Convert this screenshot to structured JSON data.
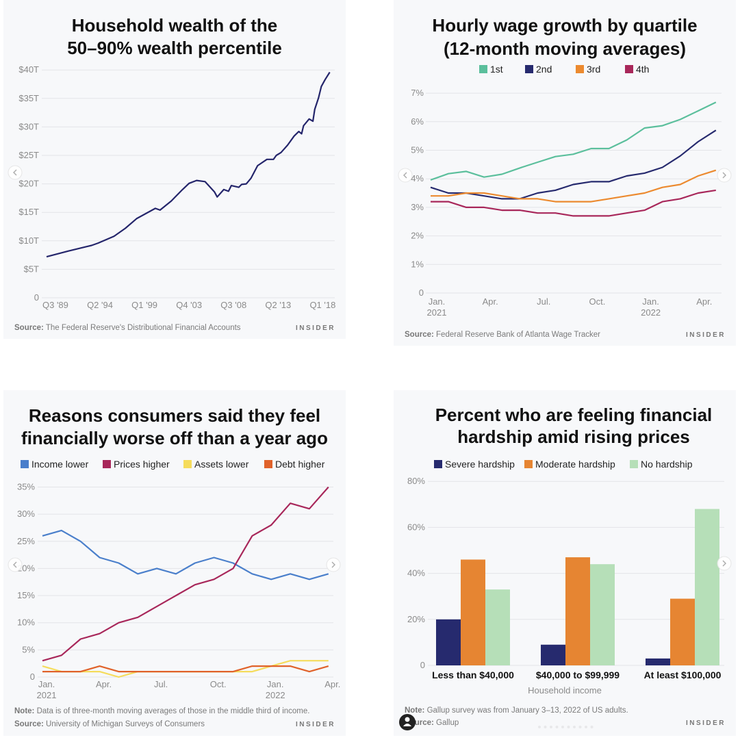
{
  "brand": "INSIDER",
  "chart_data": [
    {
      "type": "line",
      "title_lines": [
        "Household wealth of the",
        "50–90% wealth percentile"
      ],
      "ylim": [
        0,
        40
      ],
      "y_ticks": [
        {
          "v": 0,
          "label": "0"
        },
        {
          "v": 5,
          "label": "$5T"
        },
        {
          "v": 10,
          "label": "$10T"
        },
        {
          "v": 15,
          "label": "$15T"
        },
        {
          "v": 20,
          "label": "$20T"
        },
        {
          "v": 25,
          "label": "$25T"
        },
        {
          "v": 30,
          "label": "$30T"
        },
        {
          "v": 35,
          "label": "$35T"
        },
        {
          "v": 40,
          "label": "$40T"
        }
      ],
      "x_ticks": [
        {
          "v": 1989.5,
          "label": "Q3 '89"
        },
        {
          "v": 1994.25,
          "label": "Q2 '94"
        },
        {
          "v": 1999.0,
          "label": "Q1 '99"
        },
        {
          "v": 2003.75,
          "label": "Q4 '03"
        },
        {
          "v": 2008.5,
          "label": "Q3 '08"
        },
        {
          "v": 2013.25,
          "label": "Q2 '13"
        },
        {
          "v": 2018.0,
          "label": "Q1 '18"
        }
      ],
      "grid": true,
      "series": [
        {
          "color": "#24256b",
          "points": [
            [
              1989.5,
              7.2
            ],
            [
              1991.8,
              8.2
            ],
            [
              1994.3,
              9.2
            ],
            [
              1995.0,
              9.6
            ],
            [
              1996.7,
              10.8
            ],
            [
              1997.9,
              12.2
            ],
            [
              1999.1,
              13.9
            ],
            [
              2001.1,
              15.7
            ],
            [
              2001.6,
              15.4
            ],
            [
              2002.8,
              17.0
            ],
            [
              2004.0,
              19.0
            ],
            [
              2004.7,
              20.1
            ],
            [
              2005.5,
              20.6
            ],
            [
              2006.4,
              20.4
            ],
            [
              2007.4,
              18.6
            ],
            [
              2007.7,
              17.7
            ],
            [
              2008.4,
              19.0
            ],
            [
              2008.9,
              18.7
            ],
            [
              2009.2,
              19.7
            ],
            [
              2010.0,
              19.4
            ],
            [
              2010.3,
              19.9
            ],
            [
              2010.8,
              20.0
            ],
            [
              2011.3,
              21.0
            ],
            [
              2012.0,
              23.2
            ],
            [
              2013.0,
              24.3
            ],
            [
              2013.7,
              24.3
            ],
            [
              2014.0,
              25.0
            ],
            [
              2014.5,
              25.5
            ],
            [
              2015.2,
              26.8
            ],
            [
              2015.9,
              28.4
            ],
            [
              2016.4,
              29.2
            ],
            [
              2016.7,
              28.8
            ],
            [
              2016.9,
              30.2
            ],
            [
              2017.5,
              31.4
            ],
            [
              2017.9,
              31.0
            ],
            [
              2018.1,
              33.1
            ],
            [
              2018.5,
              35.1
            ],
            [
              2018.8,
              37.1
            ],
            [
              2019.2,
              38.3
            ],
            [
              2019.7,
              39.6
            ]
          ]
        }
      ],
      "source_label": "Source:",
      "source": "The Federal Reserve's Distributional Financial Accounts"
    },
    {
      "type": "line",
      "title_lines": [
        "Hourly wage growth by quartile",
        "(12-month moving averages)"
      ],
      "ylim": [
        0,
        7
      ],
      "y_ticks": [
        {
          "v": 0,
          "label": "0"
        },
        {
          "v": 1,
          "label": "1%"
        },
        {
          "v": 2,
          "label": "2%"
        },
        {
          "v": 3,
          "label": "3%"
        },
        {
          "v": 4,
          "label": "4%"
        },
        {
          "v": 5,
          "label": "5%"
        },
        {
          "v": 6,
          "label": "6%"
        },
        {
          "v": 7,
          "label": "7%"
        }
      ],
      "x_ticks": [
        {
          "v": 0,
          "label": "Jan.",
          "sub": "2021"
        },
        {
          "v": 3,
          "label": "Apr."
        },
        {
          "v": 6,
          "label": "Jul."
        },
        {
          "v": 9,
          "label": "Oct."
        },
        {
          "v": 12,
          "label": "Jan.",
          "sub": "2022"
        },
        {
          "v": 15,
          "label": "Apr."
        }
      ],
      "grid": true,
      "legend": "top",
      "series": [
        {
          "name": "1st",
          "color": "#5bbf9c",
          "values": [
            3.96,
            4.18,
            4.26,
            4.06,
            4.16,
            4.38,
            4.58,
            4.78,
            4.86,
            5.06,
            5.06,
            5.36,
            5.78,
            5.86,
            6.08,
            6.38,
            6.68
          ]
        },
        {
          "name": "2nd",
          "color": "#262a6e",
          "values": [
            3.7,
            3.5,
            3.5,
            3.4,
            3.3,
            3.3,
            3.5,
            3.6,
            3.8,
            3.9,
            3.9,
            4.1,
            4.2,
            4.4,
            4.8,
            5.3,
            5.7
          ]
        },
        {
          "name": "3rd",
          "color": "#ec8a2f",
          "values": [
            3.4,
            3.4,
            3.5,
            3.5,
            3.4,
            3.3,
            3.3,
            3.2,
            3.2,
            3.2,
            3.3,
            3.4,
            3.5,
            3.7,
            3.8,
            4.1,
            4.3
          ]
        },
        {
          "name": "4th",
          "color": "#a8275a",
          "values": [
            3.2,
            3.2,
            3.0,
            3.0,
            2.9,
            2.9,
            2.8,
            2.8,
            2.7,
            2.7,
            2.7,
            2.8,
            2.9,
            3.2,
            3.3,
            3.5,
            3.6
          ]
        }
      ],
      "source_label": "Source:",
      "source": "Federal Reserve Bank of Atlanta Wage Tracker"
    },
    {
      "type": "line",
      "title_lines": [
        "Reasons consumers said they feel",
        "financially worse off than a year ago"
      ],
      "ylim": [
        0,
        35
      ],
      "y_ticks": [
        {
          "v": 0,
          "label": "0"
        },
        {
          "v": 5,
          "label": "5%"
        },
        {
          "v": 10,
          "label": "10%"
        },
        {
          "v": 15,
          "label": "15%"
        },
        {
          "v": 20,
          "label": "20%"
        },
        {
          "v": 25,
          "label": "25%"
        },
        {
          "v": 30,
          "label": "30%"
        },
        {
          "v": 35,
          "label": "35%"
        }
      ],
      "x_ticks": [
        {
          "v": 0,
          "label": "Jan.",
          "sub": "2021"
        },
        {
          "v": 3,
          "label": "Apr."
        },
        {
          "v": 6,
          "label": "Jul."
        },
        {
          "v": 9,
          "label": "Oct."
        },
        {
          "v": 12,
          "label": "Jan.",
          "sub": "2022"
        },
        {
          "v": 15,
          "label": "Apr."
        }
      ],
      "grid": true,
      "legend": "top",
      "series": [
        {
          "name": "Income lower",
          "color": "#4a7fcb",
          "values": [
            26,
            27,
            25,
            22,
            21,
            19,
            20,
            19,
            21,
            22,
            21,
            19,
            18,
            19,
            18,
            19
          ]
        },
        {
          "name": "Prices higher",
          "color": "#a8275a",
          "values": [
            3,
            4,
            7,
            8,
            10,
            11,
            13,
            15,
            17,
            18,
            20,
            26,
            28,
            32,
            31,
            35
          ]
        },
        {
          "name": "Assets lower",
          "color": "#f5dc5c",
          "values": [
            2,
            1,
            1,
            1,
            0,
            1,
            1,
            1,
            1,
            1,
            1,
            1,
            2,
            3,
            3,
            3
          ]
        },
        {
          "name": "Debt higher",
          "color": "#e0622a",
          "values": [
            1,
            1,
            1,
            2,
            1,
            1,
            1,
            1,
            1,
            1,
            1,
            2,
            2,
            2,
            1,
            2
          ]
        }
      ],
      "note_label": "Note:",
      "note": "Data is of three-month moving averages of those in the middle third of income.",
      "source_label": "Source:",
      "source": "University of Michigan Surveys of Consumers"
    },
    {
      "type": "bar",
      "title_lines": [
        "Percent who are feeling financial",
        "hardship amid rising prices"
      ],
      "ylim": [
        0,
        80
      ],
      "y_ticks": [
        {
          "v": 0,
          "label": "0"
        },
        {
          "v": 20,
          "label": "20%"
        },
        {
          "v": 40,
          "label": "40%"
        },
        {
          "v": 60,
          "label": "60%"
        },
        {
          "v": 80,
          "label": "80%"
        }
      ],
      "categories": [
        "Less than $40,000",
        "$40,000 to $99,999",
        "At least $100,000"
      ],
      "xlabel": "Household income",
      "grid": true,
      "legend": "top",
      "series": [
        {
          "name": "Severe hardship",
          "color": "#262a6e",
          "values": [
            20,
            9,
            3
          ]
        },
        {
          "name": "Moderate hardship",
          "color": "#e68532",
          "values": [
            46,
            47,
            29
          ]
        },
        {
          "name": "No hardship",
          "color": "#b6dfb8",
          "values": [
            33,
            44,
            68
          ]
        }
      ],
      "note_label": "Note:",
      "note": "Gallup survey was from January 3–13, 2022 of US adults.",
      "source_label": "Source:",
      "source": "Gallup"
    }
  ],
  "controls": {
    "prev_icon": "chevron-left-icon",
    "next_icon": "chevron-right-icon",
    "avatar_icon": "user-icon"
  }
}
